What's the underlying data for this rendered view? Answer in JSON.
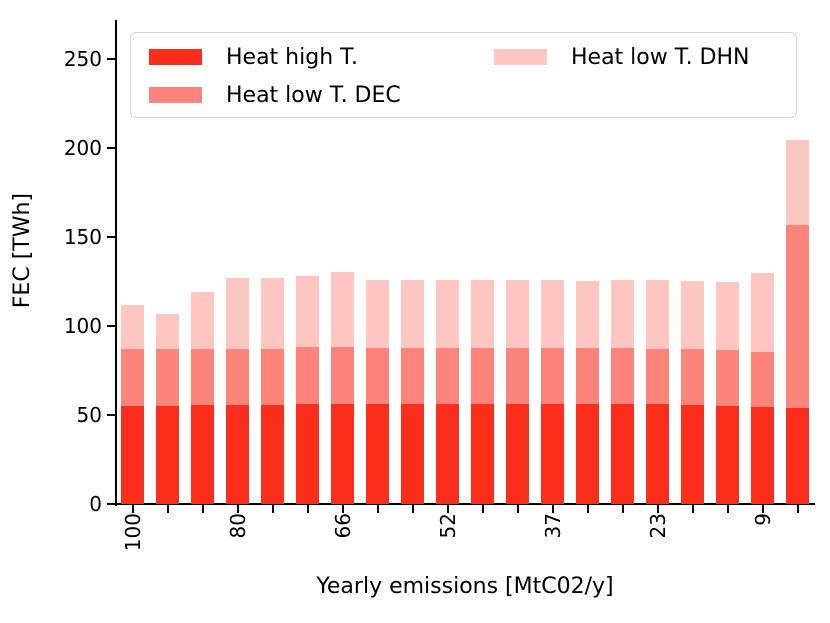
{
  "chart_data": {
    "type": "bar",
    "stacked": true,
    "title": "",
    "xlabel": "Yearly emissions [MtC02/y]",
    "ylabel": "FEC [TWh]",
    "ylim": [
      0,
      272
    ],
    "yticks": [
      0,
      50,
      100,
      150,
      200,
      250
    ],
    "grid": false,
    "legend_position": "upper center, 2 columns",
    "x_tick_labels": [
      "100",
      "",
      "",
      "80",
      "",
      "",
      "66",
      "",
      "",
      "52",
      "",
      "",
      "37",
      "",
      "",
      "23",
      "",
      "",
      "9",
      ""
    ],
    "series": [
      {
        "name": "Heat high T.",
        "color": "#fb2e1c",
        "values": [
          55,
          55,
          55.5,
          55.5,
          55.5,
          56,
          56,
          56,
          56,
          56,
          56,
          56,
          56,
          56,
          56,
          56,
          55.5,
          55,
          54.5,
          54
        ]
      },
      {
        "name": "Heat low T. DEC",
        "color": "#fc847a",
        "values": [
          32,
          32,
          31.5,
          31.5,
          31.5,
          32,
          32,
          31.5,
          31.5,
          31.5,
          31.5,
          31.5,
          31.5,
          31.5,
          31.5,
          31,
          31.5,
          31.5,
          31,
          103
        ]
      },
      {
        "name": "Heat low T. DHN",
        "color": "#fdc6c0",
        "values": [
          25,
          20,
          32,
          40,
          40,
          40,
          42.5,
          38.5,
          38.5,
          38.5,
          38.5,
          38.5,
          38.5,
          38,
          38.5,
          39,
          38.5,
          38.5,
          44.5,
          47.5
        ]
      }
    ]
  }
}
